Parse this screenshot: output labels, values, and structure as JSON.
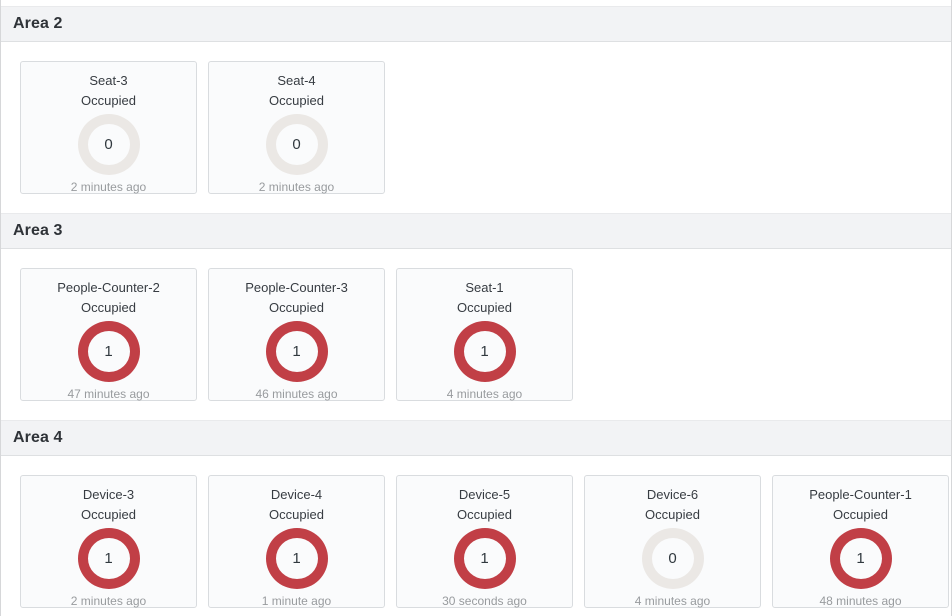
{
  "status_colors": {
    "active_ring": "#c13f46",
    "inactive_ring": "#ebe8e5"
  },
  "sections": [
    {
      "title": "Area 2",
      "cards": [
        {
          "name": "Seat-3",
          "status": "Occupied",
          "value": "0",
          "active": false,
          "updated": "2 minutes ago"
        },
        {
          "name": "Seat-4",
          "status": "Occupied",
          "value": "0",
          "active": false,
          "updated": "2 minutes ago"
        }
      ]
    },
    {
      "title": "Area 3",
      "cards": [
        {
          "name": "People-Counter-2",
          "status": "Occupied",
          "value": "1",
          "active": true,
          "updated": "47 minutes ago"
        },
        {
          "name": "People-Counter-3",
          "status": "Occupied",
          "value": "1",
          "active": true,
          "updated": "46 minutes ago"
        },
        {
          "name": "Seat-1",
          "status": "Occupied",
          "value": "1",
          "active": true,
          "updated": "4 minutes ago"
        }
      ]
    },
    {
      "title": "Area 4",
      "cards": [
        {
          "name": "Device-3",
          "status": "Occupied",
          "value": "1",
          "active": true,
          "updated": "2 minutes ago"
        },
        {
          "name": "Device-4",
          "status": "Occupied",
          "value": "1",
          "active": true,
          "updated": "1 minute ago"
        },
        {
          "name": "Device-5",
          "status": "Occupied",
          "value": "1",
          "active": true,
          "updated": "30 seconds ago"
        },
        {
          "name": "Device-6",
          "status": "Occupied",
          "value": "0",
          "active": false,
          "updated": "4 minutes ago"
        },
        {
          "name": "People-Counter-1",
          "status": "Occupied",
          "value": "1",
          "active": true,
          "updated": "48 minutes ago"
        }
      ]
    }
  ]
}
